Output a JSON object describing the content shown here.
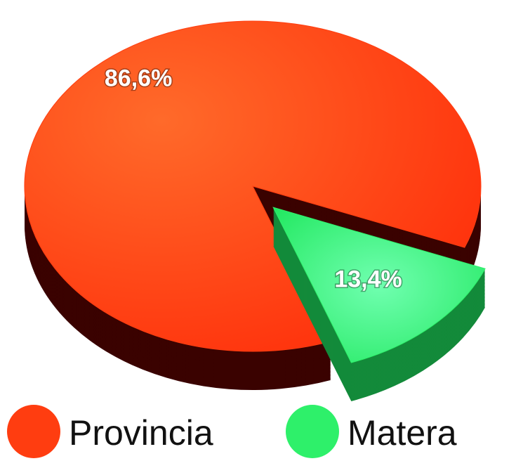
{
  "chart_data": {
    "type": "pie",
    "categories": [
      "Provincia",
      "Matera"
    ],
    "values": [
      86.6,
      13.4
    ],
    "value_labels": [
      "86,6%",
      "13,4%"
    ],
    "colors": [
      "#ff3d10",
      "#2ef06a"
    ]
  }
}
